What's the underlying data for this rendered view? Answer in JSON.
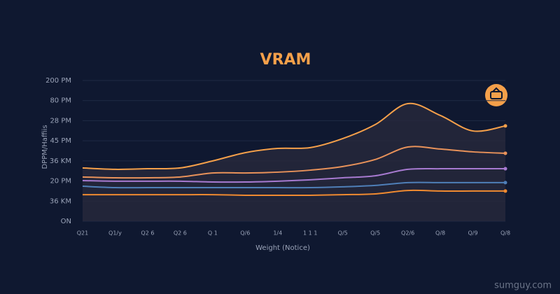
{
  "chart_data": {
    "type": "line",
    "title": "VRAM",
    "y_label": "DPPM/Haffiis",
    "x_label": "Weight (Notice)",
    "watermark": "sumguy.com",
    "categories": [
      "Q21",
      "Q1/y",
      "Q2 6",
      "Q2 6",
      "Q 1",
      "Q/6",
      "1/4",
      "1 1 1",
      "Q/5",
      "Q/5",
      "Q2/6",
      "Q/8",
      "Q/9",
      "Q/8"
    ],
    "series": [
      {
        "color": "#f5a04a",
        "area": true,
        "values": [
          2.65,
          2.58,
          2.61,
          2.65,
          3.0,
          3.41,
          3.62,
          3.66,
          4.11,
          4.81,
          5.85,
          5.26,
          4.49,
          4.74
        ]
      },
      {
        "color": "#e8925a",
        "values": [
          2.2,
          2.16,
          2.16,
          2.2,
          2.4,
          2.4,
          2.44,
          2.54,
          2.72,
          3.07,
          3.69,
          3.59,
          3.45,
          3.38
        ]
      },
      {
        "color": "#a77ad0",
        "values": [
          2.02,
          1.99,
          1.99,
          1.99,
          1.95,
          1.95,
          1.99,
          2.06,
          2.16,
          2.26,
          2.58,
          2.61,
          2.61,
          2.61
        ]
      },
      {
        "color": "#4f7fb8",
        "values": [
          1.74,
          1.67,
          1.67,
          1.67,
          1.67,
          1.67,
          1.67,
          1.67,
          1.71,
          1.78,
          1.92,
          1.92,
          1.92,
          1.92
        ]
      },
      {
        "color": "#f08a30",
        "values": [
          1.32,
          1.32,
          1.32,
          1.32,
          1.32,
          1.29,
          1.29,
          1.29,
          1.32,
          1.36,
          1.53,
          1.5,
          1.5,
          1.5
        ]
      }
    ],
    "ylim": [
      0,
      7
    ],
    "yticks": [
      {
        "value": 0,
        "label": "ON"
      },
      {
        "value": 1,
        "label": "36 KM"
      },
      {
        "value": 2,
        "label": "20 PM"
      },
      {
        "value": 3,
        "label": "36 KM"
      },
      {
        "value": 4,
        "label": "45 PM"
      },
      {
        "value": 5,
        "label": "28 PM"
      },
      {
        "value": 6,
        "label": "80 PM"
      },
      {
        "value": 7,
        "label": "200 PM"
      }
    ],
    "grid": true
  }
}
